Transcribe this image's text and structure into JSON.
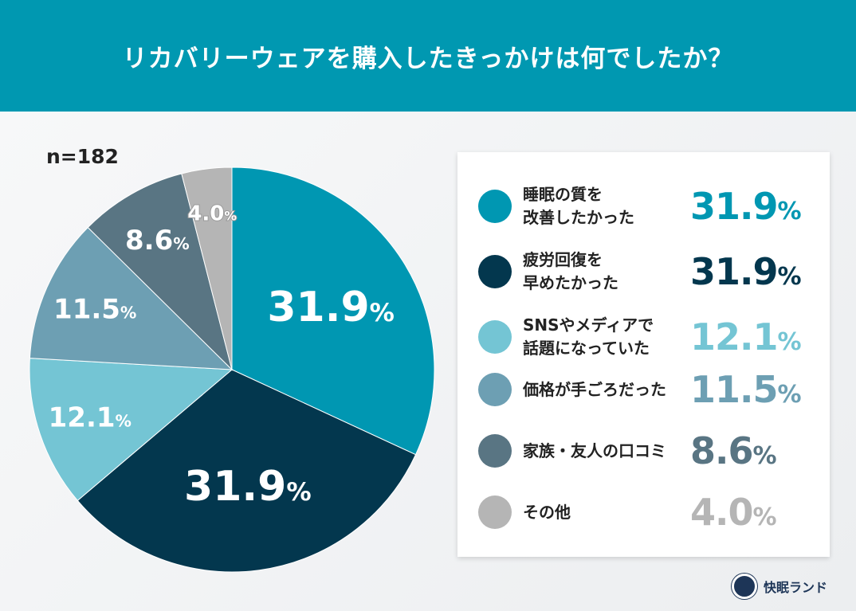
{
  "title": "リカバリーウェアを購入したきっかけは何でしたか？",
  "sample": "n=182",
  "brand": "快眠ランド",
  "chart_data": {
    "type": "pie",
    "title": "リカバリーウェアを購入したきっかけは何でしたか？",
    "unit": "%",
    "legend_placement": "right",
    "slices": [
      {
        "label": "睡眠の質を改善したかった",
        "lines": [
          "睡眠の質を",
          "改善したかった"
        ],
        "value": 31.9,
        "display": "31.9",
        "color": "#0097b2"
      },
      {
        "label": "疲労回復を早めたかった",
        "lines": [
          "疲労回復を",
          "早めたかった"
        ],
        "value": 31.9,
        "display": "31.9",
        "color": "#03374e"
      },
      {
        "label": "SNSやメディアで話題になっていた",
        "lines": [
          "SNSやメディアで",
          "話題になっていた"
        ],
        "value": 12.1,
        "display": "12.1",
        "color": "#74c5d4"
      },
      {
        "label": "価格が手ごろだった",
        "lines": [
          "価格が手ごろだった"
        ],
        "value": 11.5,
        "display": "11.5",
        "color": "#6d9fb3"
      },
      {
        "label": "家族・友人の口コミ",
        "lines": [
          "家族・友人の口コミ"
        ],
        "value": 8.6,
        "display": "8.6",
        "color": "#597583"
      },
      {
        "label": "その他",
        "lines": [
          "その他"
        ],
        "value": 4.0,
        "display": "4.0",
        "color": "#b5b5b5"
      }
    ]
  }
}
